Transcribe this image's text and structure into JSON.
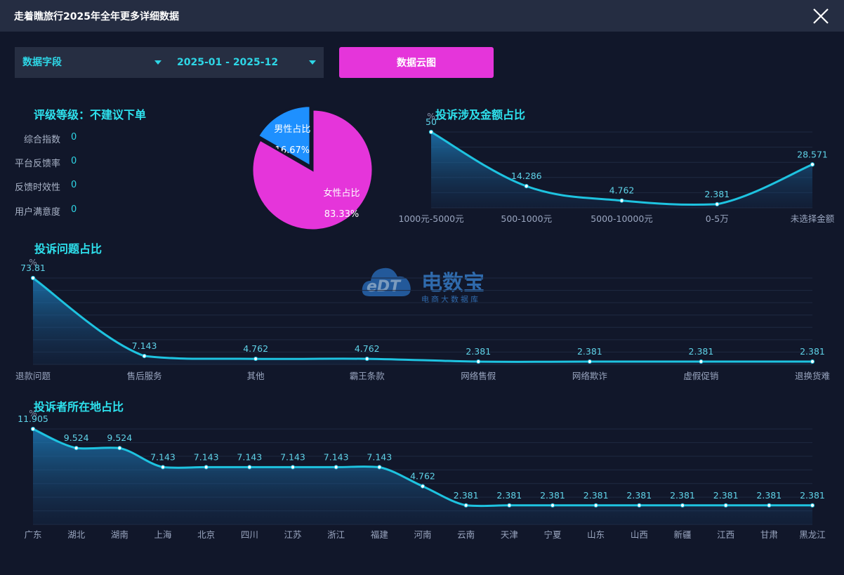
{
  "header": {
    "title": "走着瞧旅行2025年全年更多详细数据"
  },
  "filters": {
    "field_label": "数据字段",
    "date_range": "2025-01 - 2025-12",
    "cloud_button": "数据云图"
  },
  "rating": {
    "title": "评级等级：不建议下单",
    "metrics": [
      {
        "label": "综合指数",
        "value": "0"
      },
      {
        "label": "平台反馈率",
        "value": "0"
      },
      {
        "label": "反馈时效性",
        "value": "0"
      },
      {
        "label": "用户满意度",
        "value": "0"
      }
    ]
  },
  "watermark": {
    "brand": "电数宝",
    "sub": "电商大数据库",
    "logo": "eDT"
  },
  "colors": {
    "accent": "#2ed6e6",
    "male": "#1e90ff",
    "female": "#e535da",
    "line": "#1ec3e0"
  },
  "chart_data": [
    {
      "id": "gender",
      "type": "pie",
      "slices": [
        {
          "label": "男性占比",
          "pct_label": "16.67%",
          "value": 16.67,
          "color": "#1e90ff"
        },
        {
          "label": "女性占比",
          "pct_label": "83.33%",
          "value": 83.33,
          "color": "#e535da"
        }
      ]
    },
    {
      "id": "amount",
      "type": "area",
      "title": "投诉涉及金额占比",
      "ylabel": "%",
      "ylim": [
        0,
        50
      ],
      "categories": [
        "1000元-5000元",
        "500-1000元",
        "5000-10000元",
        "0-5万",
        "未选择金额"
      ],
      "values": [
        50,
        14.286,
        4.762,
        2.381,
        28.571
      ],
      "value_labels": [
        "50",
        "14.286",
        "4.762",
        "2.381",
        "28.571"
      ]
    },
    {
      "id": "issue",
      "type": "area",
      "title": "投诉问题占比",
      "ylabel": "%",
      "ylim": [
        0,
        73.81
      ],
      "categories": [
        "退款问题",
        "售后服务",
        "其他",
        "霸王条款",
        "网络售假",
        "网络欺诈",
        "虚假促销",
        "退换货难"
      ],
      "values": [
        73.81,
        7.143,
        4.762,
        4.762,
        2.381,
        2.381,
        2.381,
        2.381
      ],
      "value_labels": [
        "73.81",
        "7.143",
        "4.762",
        "4.762",
        "2.381",
        "2.381",
        "2.381",
        "2.381"
      ]
    },
    {
      "id": "region",
      "type": "area",
      "title": "投诉者所在地占比",
      "ylabel": "%",
      "ylim": [
        0,
        11.905
      ],
      "categories": [
        "广东",
        "湖北",
        "湖南",
        "上海",
        "北京",
        "四川",
        "江苏",
        "浙江",
        "福建",
        "河南",
        "云南",
        "天津",
        "宁夏",
        "山东",
        "山西",
        "新疆",
        "江西",
        "甘肃",
        "黑龙江"
      ],
      "values": [
        11.905,
        9.524,
        9.524,
        7.143,
        7.143,
        7.143,
        7.143,
        7.143,
        7.143,
        4.762,
        2.381,
        2.381,
        2.381,
        2.381,
        2.381,
        2.381,
        2.381,
        2.381,
        2.381
      ],
      "value_labels": [
        "11.905",
        "9.524",
        "9.524",
        "7.143",
        "7.143",
        "7.143",
        "7.143",
        "7.143",
        "7.143",
        "4.762",
        "2.381",
        "2.381",
        "2.381",
        "2.381",
        "2.381",
        "2.381",
        "2.381",
        "2.381",
        "2.381"
      ]
    }
  ]
}
